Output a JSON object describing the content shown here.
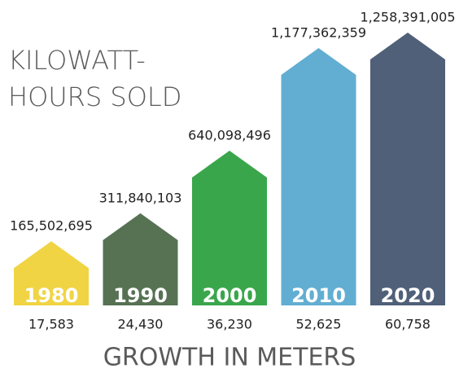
{
  "chart_data": {
    "type": "bar",
    "title": [
      "KILOWATT-",
      "HOURS SOLD"
    ],
    "categories": [
      "1980",
      "1990",
      "2000",
      "2010",
      "2020"
    ],
    "values": [
      165502695,
      311840103,
      640098496,
      1177362359,
      1258391005
    ],
    "value_labels": [
      "165,502,695",
      "311,840,103",
      "640,098,496",
      "1,177,362,359",
      "1,258,391,005"
    ],
    "colors": [
      "#f0d443",
      "#567253",
      "#3aa64b",
      "#62aed2",
      "#4f6078"
    ],
    "meters": {
      "label": "GROWTH IN METERS",
      "values": [
        17583,
        24430,
        36230,
        52625,
        60758
      ],
      "value_labels": [
        "17,583",
        "24,430",
        "36,230",
        "52,625",
        "60,758"
      ]
    }
  }
}
